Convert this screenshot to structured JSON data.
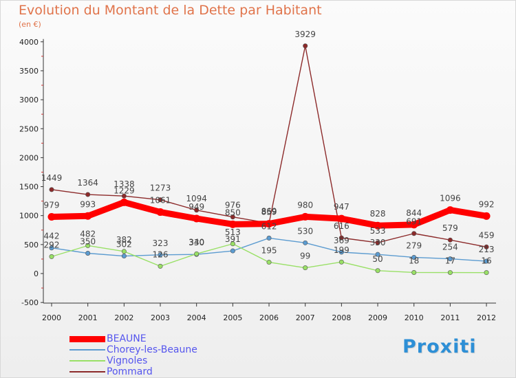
{
  "title": "Evolution du Montant de la Dette par Habitant",
  "subtitle": "(en €)",
  "logo_text": "Proxiti",
  "chart_data": {
    "type": "line",
    "title": "Evolution du Montant de la Dette par Habitant",
    "ylabel": "(en €)",
    "x": [
      2000,
      2001,
      2002,
      2003,
      2004,
      2005,
      2006,
      2007,
      2008,
      2009,
      2010,
      2011,
      2012
    ],
    "ylim": [
      -500,
      4000
    ],
    "yticks": [
      -500,
      0,
      500,
      1000,
      1500,
      2000,
      2500,
      3000,
      3500,
      4000
    ],
    "grid": false,
    "legend": "bottom-left",
    "series": [
      {
        "name": "BEAUNE",
        "color": "#ff0000",
        "values": [
          979,
          993,
          1229,
          1061,
          949,
          850,
          859,
          980,
          947,
          828,
          844,
          1096,
          992
        ]
      },
      {
        "name": "Chorey-les-Beaune",
        "color": "#5b9bd0",
        "values": [
          442,
          350,
          302,
          323,
          330,
          391,
          612,
          530,
          369,
          330,
          279,
          254,
          213
        ]
      },
      {
        "name": "Vignoles",
        "color": "#99e066",
        "values": [
          292,
          482,
          382,
          126,
          340,
          513,
          195,
          99,
          199,
          50,
          18,
          17,
          16
        ]
      },
      {
        "name": "Pommard",
        "color": "#8c2a2a",
        "values": [
          1449,
          1364,
          1338,
          1273,
          1094,
          976,
          869,
          3929,
          616,
          533,
          691,
          579,
          459
        ]
      }
    ]
  }
}
